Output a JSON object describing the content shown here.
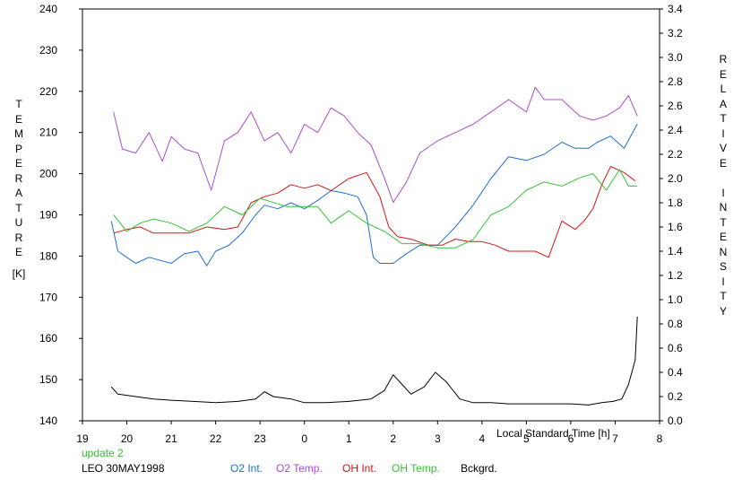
{
  "chart_data": {
    "type": "line",
    "title": "",
    "x_axis": {
      "label": "Local Standard Time [h]",
      "range": [
        19,
        8
      ],
      "ticks": [
        "19",
        "20",
        "21",
        "22",
        "23",
        "0",
        "1",
        "2",
        "3",
        "4",
        "5",
        "6",
        "7",
        "8"
      ]
    },
    "y_left": {
      "label_letters": [
        "T",
        "E",
        "M",
        "P",
        "E",
        "R",
        "A",
        "T",
        "U",
        "R",
        "E"
      ],
      "unit": "[K]",
      "range": [
        140,
        240
      ],
      "ticks": [
        "140",
        "150",
        "160",
        "170",
        "180",
        "190",
        "200",
        "210",
        "220",
        "230",
        "240"
      ]
    },
    "y_right": {
      "label_word1": [
        "R",
        "E",
        "L",
        "A",
        "T",
        "I",
        "V",
        "E"
      ],
      "label_word2": [
        "I",
        "N",
        "T",
        "E",
        "N",
        "S",
        "I",
        "T",
        "Y"
      ],
      "range": [
        0.0,
        3.4
      ],
      "ticks": [
        "0.0",
        "0.2",
        "0.4",
        "0.6",
        "0.8",
        "1.0",
        "1.2",
        "1.4",
        "1.6",
        "1.8",
        "2.0",
        "2.2",
        "2.4",
        "2.6",
        "2.8",
        "3.0",
        "3.2",
        "3.4"
      ]
    },
    "grid": false,
    "legend_position": "bottom",
    "series": [
      {
        "name": "O2 Int.",
        "color": "#1c6fd4",
        "axis": "right",
        "x": [
          19.65,
          19.8,
          20.0,
          20.2,
          20.5,
          20.8,
          21.0,
          21.3,
          21.6,
          21.8,
          22.0,
          22.3,
          22.6,
          22.9,
          23.1,
          23.4,
          23.7,
          24.0,
          24.3,
          24.6,
          24.9,
          25.2,
          25.4,
          25.55,
          25.7,
          26.0,
          26.3,
          26.6,
          27.0,
          27.4,
          27.8,
          28.2,
          28.6,
          29.0,
          29.4,
          29.8,
          30.1,
          30.4,
          30.6,
          30.9,
          31.2,
          31.5
        ],
        "y": [
          1.65,
          1.4,
          1.35,
          1.3,
          1.35,
          1.32,
          1.3,
          1.38,
          1.4,
          1.28,
          1.4,
          1.45,
          1.55,
          1.7,
          1.78,
          1.75,
          1.8,
          1.75,
          1.82,
          1.9,
          1.88,
          1.85,
          1.7,
          1.35,
          1.3,
          1.3,
          1.38,
          1.45,
          1.45,
          1.6,
          1.78,
          2.0,
          2.18,
          2.15,
          2.2,
          2.3,
          2.25,
          2.25,
          2.3,
          2.35,
          2.25,
          2.45
        ]
      },
      {
        "name": "O2 Temp.",
        "color": "#a64ed1",
        "axis": "left",
        "x": [
          19.7,
          19.9,
          20.2,
          20.5,
          20.8,
          21.0,
          21.3,
          21.6,
          21.9,
          22.2,
          22.5,
          22.8,
          23.1,
          23.4,
          23.7,
          24.0,
          24.3,
          24.6,
          24.9,
          25.2,
          25.5,
          25.8,
          26.0,
          26.3,
          26.6,
          27.0,
          27.4,
          27.8,
          28.2,
          28.6,
          29.0,
          29.2,
          29.4,
          29.8,
          30.2,
          30.5,
          30.8,
          31.1,
          31.3,
          31.5
        ],
        "y": [
          215,
          206,
          205,
          210,
          203,
          209,
          206,
          205,
          196,
          208,
          210,
          215,
          208,
          210,
          205,
          212,
          210,
          216,
          214,
          210,
          207,
          199,
          193,
          198,
          205,
          208,
          210,
          212,
          215,
          218,
          215,
          221,
          218,
          218,
          214,
          213,
          214,
          216,
          219,
          214
        ]
      },
      {
        "name": "OH Int.",
        "color": "#d01818",
        "axis": "right",
        "x": [
          19.7,
          20.0,
          20.3,
          20.6,
          21.0,
          21.4,
          21.8,
          22.2,
          22.5,
          22.8,
          23.1,
          23.4,
          23.7,
          24.0,
          24.3,
          24.6,
          25.0,
          25.4,
          25.7,
          25.9,
          26.1,
          26.4,
          26.8,
          27.1,
          27.4,
          27.7,
          28.0,
          28.3,
          28.6,
          28.9,
          29.2,
          29.5,
          29.8,
          30.1,
          30.3,
          30.5,
          30.7,
          30.9,
          31.2,
          31.45
        ],
        "y": [
          1.55,
          1.58,
          1.6,
          1.55,
          1.55,
          1.55,
          1.6,
          1.58,
          1.6,
          1.8,
          1.85,
          1.88,
          1.95,
          1.92,
          1.95,
          1.9,
          2.0,
          2.05,
          1.85,
          1.6,
          1.52,
          1.5,
          1.45,
          1.45,
          1.5,
          1.48,
          1.48,
          1.45,
          1.4,
          1.4,
          1.4,
          1.35,
          1.65,
          1.58,
          1.65,
          1.75,
          1.95,
          2.1,
          2.05,
          1.98
        ]
      },
      {
        "name": "OH Temp.",
        "color": "#34c234",
        "axis": "left",
        "x": [
          19.7,
          20.0,
          20.3,
          20.6,
          21.0,
          21.4,
          21.8,
          22.2,
          22.6,
          23.0,
          23.3,
          23.6,
          24.0,
          24.3,
          24.6,
          25.0,
          25.4,
          25.8,
          26.2,
          26.6,
          27.0,
          27.4,
          27.8,
          28.2,
          28.6,
          29.0,
          29.4,
          29.8,
          30.2,
          30.5,
          30.8,
          31.1,
          31.3,
          31.5
        ],
        "y": [
          190,
          186,
          188,
          189,
          188,
          186,
          188,
          192,
          190,
          194,
          193,
          192,
          192,
          192,
          188,
          191,
          188,
          186,
          183,
          183,
          182,
          182,
          184,
          190,
          192,
          196,
          198,
          197,
          199,
          200,
          196,
          201,
          197,
          197
        ]
      },
      {
        "name": "Bckgrd.",
        "color": "#000000",
        "axis": "right",
        "x": [
          19.65,
          19.8,
          20.2,
          20.6,
          21.0,
          21.5,
          22.0,
          22.5,
          22.9,
          23.1,
          23.3,
          23.7,
          24.0,
          24.5,
          25.0,
          25.5,
          25.8,
          26.0,
          26.2,
          26.4,
          26.7,
          26.95,
          27.2,
          27.5,
          27.8,
          28.2,
          28.6,
          29.0,
          29.5,
          30.0,
          30.4,
          30.7,
          30.95,
          31.15,
          31.3,
          31.45,
          31.5
        ],
        "y": [
          0.28,
          0.22,
          0.2,
          0.18,
          0.17,
          0.16,
          0.15,
          0.16,
          0.18,
          0.24,
          0.2,
          0.18,
          0.15,
          0.15,
          0.16,
          0.18,
          0.25,
          0.38,
          0.3,
          0.22,
          0.28,
          0.4,
          0.32,
          0.18,
          0.15,
          0.15,
          0.14,
          0.14,
          0.14,
          0.14,
          0.13,
          0.15,
          0.16,
          0.18,
          0.3,
          0.5,
          0.86
        ]
      }
    ]
  },
  "footer": {
    "update_note": "update 2",
    "station_date": "LEO 30MAY1998"
  },
  "colors": {
    "o2_int": "#1c6fd4",
    "o2_temp": "#a64ed1",
    "oh_int": "#d01818",
    "oh_temp": "#34c234",
    "bckgrd": "#000000",
    "update_note": "#2fbf2f"
  }
}
